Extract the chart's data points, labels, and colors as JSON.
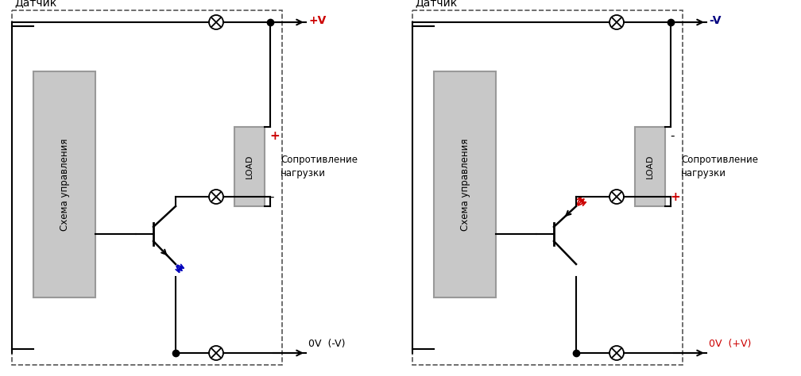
{
  "bg_color": "#ffffff",
  "line_color": "#000000",
  "dashed_color": "#777777",
  "gray_fill": "#c8c8c8",
  "gray_edge": "#999999",
  "red_color": "#cc0000",
  "blue_color": "#0000bb",
  "navy_color": "#000080",
  "left": {
    "title": "Датчик",
    "v_label": "+V",
    "v_label_color": "#cc0000",
    "zero_label": "0V  (-V)",
    "zero_label_color": "#000000",
    "plus_sign": "+",
    "plus_color": "#cc0000",
    "minus_sign": "-",
    "minus_color": "#000000",
    "load_label": "LOAD",
    "load_text": "Сопротивление\nнагрузки",
    "emit_arrow_color": "#0000bb"
  },
  "right": {
    "title": "Датчик",
    "v_label": "-V",
    "v_label_color": "#000080",
    "zero_label": "0V  (+V)",
    "zero_label_color": "#cc0000",
    "plus_sign": "+",
    "plus_color": "#cc0000",
    "minus_sign": "-",
    "minus_color": "#000000",
    "load_label": "LOAD",
    "load_text": "Сопротивление\nнагрузки",
    "emit_arrow_color": "#cc0000"
  }
}
